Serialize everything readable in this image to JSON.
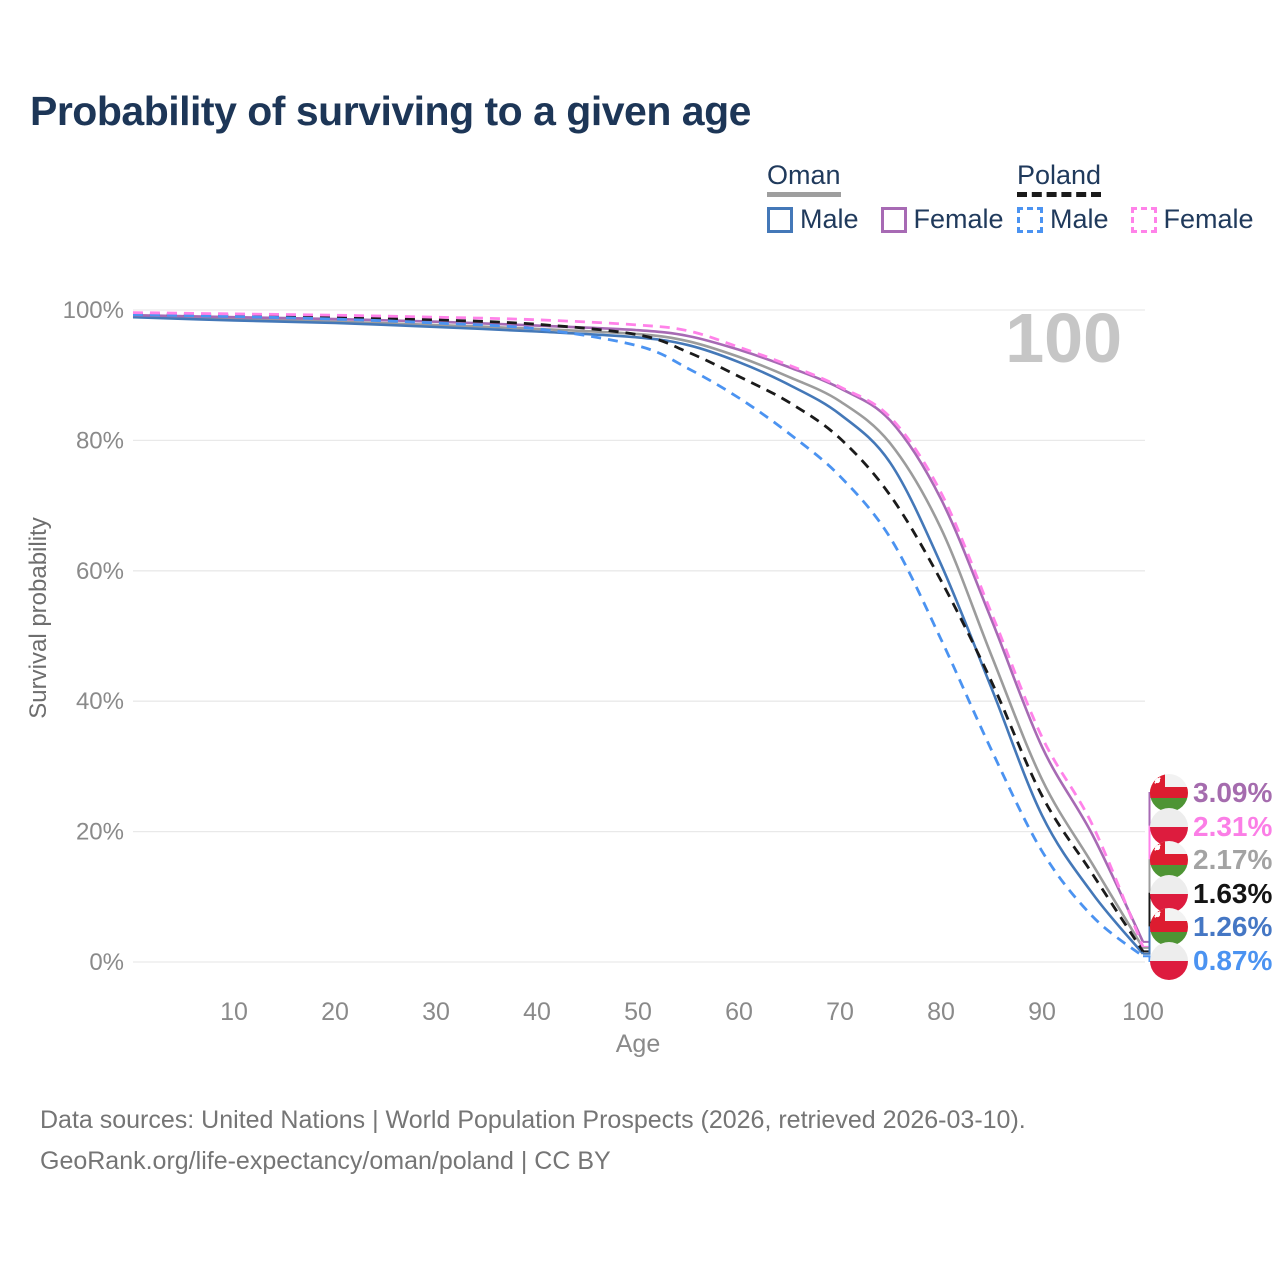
{
  "title": "Probability of surviving to a given age",
  "legend": {
    "groups": [
      {
        "id": "oman",
        "label": "Oman",
        "line_color": "#9e9e9e",
        "line_style": "solid",
        "items": [
          {
            "label": "Male",
            "color": "#4478b8",
            "style": "solid"
          },
          {
            "label": "Female",
            "color": "#a76ab4",
            "style": "solid"
          }
        ]
      },
      {
        "id": "poland",
        "label": "Poland",
        "line_color": "#1a1a1a",
        "line_style": "dashed",
        "items": [
          {
            "label": "Male",
            "color": "#4b93f1",
            "style": "dashed"
          },
          {
            "label": "Female",
            "color": "#ff82e9",
            "style": "dashed"
          }
        ]
      }
    ]
  },
  "chart_data": {
    "type": "line",
    "title": "Probability of surviving to a given age",
    "xlabel": "Age",
    "ylabel": "Survival probability",
    "watermark": "100",
    "x_range": [
      0,
      100
    ],
    "y_range": [
      0,
      100
    ],
    "grid": "horizontal-only",
    "x_ticks": [
      10,
      20,
      30,
      40,
      50,
      60,
      70,
      80,
      90,
      100
    ],
    "y_ticks": [
      {
        "v": 0,
        "label": "0%"
      },
      {
        "v": 20,
        "label": "20%"
      },
      {
        "v": 40,
        "label": "40%"
      },
      {
        "v": 60,
        "label": "60%"
      },
      {
        "v": 80,
        "label": "80%"
      },
      {
        "v": 100,
        "label": "100%"
      }
    ],
    "ages": [
      0,
      10,
      20,
      30,
      40,
      50,
      55,
      60,
      65,
      70,
      75,
      80,
      85,
      90,
      95,
      100
    ],
    "series": [
      {
        "name": "Oman Total",
        "country": "oman",
        "sex": "total",
        "color": "#9c9c9c",
        "dash": false,
        "end_label": "2.17%",
        "label_color": "#a3a3a3",
        "values": [
          99.0,
          98.6,
          98.2,
          97.7,
          97.1,
          96.3,
          95.2,
          92.8,
          89.7,
          86.0,
          79.5,
          66.5,
          47.0,
          28.0,
          15.0,
          2.17
        ]
      },
      {
        "name": "Oman Male",
        "country": "oman",
        "sex": "male",
        "color": "#4478b8",
        "dash": false,
        "end_label": "1.26%",
        "label_color": "#4577c4",
        "values": [
          98.9,
          98.4,
          98.0,
          97.4,
          96.7,
          95.8,
          94.6,
          92.0,
          88.5,
          84.0,
          76.5,
          61.0,
          42.0,
          22.5,
          10.5,
          1.26
        ]
      },
      {
        "name": "Oman Female",
        "country": "oman",
        "sex": "female",
        "color": "#a76ab4",
        "dash": false,
        "end_label": "3.09%",
        "label_color": "#a56cae",
        "values": [
          99.2,
          98.9,
          98.6,
          98.2,
          97.6,
          96.9,
          96.0,
          93.9,
          91.2,
          88.0,
          83.0,
          71.0,
          52.5,
          33.0,
          19.5,
          3.09
        ]
      },
      {
        "name": "Poland Total",
        "country": "poland",
        "sex": "total",
        "color": "#1a1a1a",
        "dash": true,
        "end_label": "1.63%",
        "label_color": "#141414",
        "values": [
          99.4,
          99.2,
          98.9,
          98.5,
          97.8,
          96.2,
          93.5,
          89.8,
          85.8,
          80.3,
          71.5,
          58.5,
          43.0,
          25.5,
          13.5,
          1.63
        ]
      },
      {
        "name": "Poland Male",
        "country": "poland",
        "sex": "male",
        "color": "#4b93f1",
        "dash": true,
        "end_label": "0.87%",
        "label_color": "#4b93f1",
        "values": [
          99.3,
          99.0,
          98.6,
          98.0,
          97.1,
          94.5,
          91.0,
          86.5,
          81.0,
          74.5,
          65.0,
          49.5,
          32.5,
          17.0,
          7.0,
          0.87
        ]
      },
      {
        "name": "Poland Female",
        "country": "poland",
        "sex": "female",
        "color": "#ff82e9",
        "dash": true,
        "end_label": "2.31%",
        "label_color": "#fb7ee6",
        "values": [
          99.6,
          99.4,
          99.2,
          98.9,
          98.5,
          97.7,
          96.8,
          94.3,
          91.5,
          88.2,
          83.5,
          72.0,
          53.5,
          34.5,
          21.0,
          2.31
        ]
      }
    ]
  },
  "flag_colors": {
    "oman_white": "#f2f2f2",
    "oman_red": "#dd1c30",
    "oman_green": "#4e9434",
    "poland_white": "#ededed",
    "poland_red": "#dd1c3e"
  },
  "style_colors": {
    "grid": "#e9e9e9",
    "tick_text": "#8a8a8a",
    "axis_title": "#6e6e6e",
    "watermark": "#c6c6c6"
  },
  "footer": {
    "line1": "Data sources: United Nations | World Population Prospects (2026, retrieved 2026-03-10).",
    "line2": "GeoRank.org/life-expectancy/oman/poland | CC BY"
  }
}
